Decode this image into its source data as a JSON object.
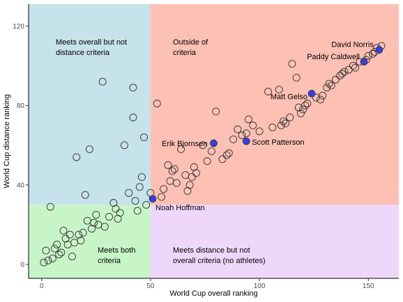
{
  "chart_data": {
    "type": "scatter",
    "xlabel": "World Cup overall ranking",
    "ylabel": "World Cup distance ranking",
    "xlim": [
      -6,
      164
    ],
    "ylim": [
      -7,
      131
    ],
    "xticks": [
      0,
      50,
      100,
      150
    ],
    "yticks": [
      0,
      40,
      80,
      120
    ],
    "grid": false,
    "colors": {
      "blue_region": "#c6e2ea",
      "red_region": "#fcc0b4",
      "green_region": "#c8f5c8",
      "purple_region": "#efd7fb",
      "highlight_point": "#3b3fd8",
      "point_stroke": "#333333"
    },
    "regions": [
      {
        "id": "overall-only",
        "x": [
          -6,
          50
        ],
        "y": [
          30,
          131
        ],
        "color": "#c6e2ea",
        "label": [
          "Meets overall but not",
          "distance criteria"
        ]
      },
      {
        "id": "outside",
        "x": [
          50,
          164
        ],
        "y": [
          30,
          131
        ],
        "color": "#fcc0b4",
        "label": [
          "Outside of",
          "criteria"
        ]
      },
      {
        "id": "both",
        "x": [
          -6,
          50
        ],
        "y": [
          -7,
          30
        ],
        "color": "#c8f5c8",
        "label": [
          "Meets both",
          "criteria"
        ]
      },
      {
        "id": "distance-only",
        "x": [
          50,
          164
        ],
        "y": [
          -7,
          30
        ],
        "color": "#efd7fb",
        "label": [
          "Meets distance but not",
          "overall criteria (no athletes)"
        ]
      }
    ],
    "highlighted": [
      {
        "name": "David Norris",
        "x": 155,
        "y": 108
      },
      {
        "name": "Paddy Caldwell",
        "x": 148,
        "y": 102
      },
      {
        "name": "Matt Gelso",
        "x": 124,
        "y": 86
      },
      {
        "name": "Erik Bjornsen",
        "x": 79,
        "y": 61
      },
      {
        "name": "Scott Patterson",
        "x": 94,
        "y": 62
      },
      {
        "name": "Noah Hoffman",
        "x": 51,
        "y": 33
      }
    ],
    "points": [
      [
        1,
        1
      ],
      [
        3,
        2
      ],
      [
        2,
        7
      ],
      [
        5,
        3
      ],
      [
        6,
        8
      ],
      [
        7,
        10
      ],
      [
        8,
        5
      ],
      [
        9,
        6
      ],
      [
        10,
        17
      ],
      [
        11,
        13
      ],
      [
        12,
        10
      ],
      [
        13,
        15
      ],
      [
        14,
        4
      ],
      [
        15,
        11
      ],
      [
        17,
        15
      ],
      [
        18,
        12
      ],
      [
        19,
        16
      ],
      [
        20,
        35
      ],
      [
        21,
        22
      ],
      [
        23,
        18
      ],
      [
        24,
        21
      ],
      [
        25,
        25
      ],
      [
        26,
        20
      ],
      [
        28,
        92
      ],
      [
        29,
        19
      ],
      [
        4,
        29
      ],
      [
        16,
        54
      ],
      [
        22,
        58
      ],
      [
        31,
        24
      ],
      [
        33,
        31
      ],
      [
        34,
        28
      ],
      [
        35,
        23
      ],
      [
        36,
        26
      ],
      [
        38,
        60
      ],
      [
        40,
        36
      ],
      [
        42,
        89
      ],
      [
        42,
        74
      ],
      [
        43,
        32
      ],
      [
        44,
        27
      ],
      [
        45,
        39
      ],
      [
        46,
        44
      ],
      [
        47,
        64
      ],
      [
        48,
        30
      ],
      [
        50,
        36
      ],
      [
        53,
        81
      ],
      [
        55,
        34
      ],
      [
        56,
        38
      ],
      [
        58,
        50
      ],
      [
        59,
        42
      ],
      [
        60,
        47
      ],
      [
        61,
        48
      ],
      [
        62,
        41
      ],
      [
        64,
        58
      ],
      [
        66,
        45
      ],
      [
        67,
        37
      ],
      [
        68,
        40
      ],
      [
        69,
        44
      ],
      [
        70,
        49
      ],
      [
        71,
        46
      ],
      [
        74,
        60
      ],
      [
        76,
        52
      ],
      [
        78,
        57
      ],
      [
        80,
        77
      ],
      [
        83,
        53
      ],
      [
        85,
        55
      ],
      [
        86,
        56
      ],
      [
        88,
        63
      ],
      [
        90,
        68
      ],
      [
        92,
        65
      ],
      [
        94,
        66
      ],
      [
        95,
        73
      ],
      [
        97,
        70
      ],
      [
        100,
        67
      ],
      [
        104,
        87
      ],
      [
        106,
        69
      ],
      [
        109,
        88
      ],
      [
        110,
        70
      ],
      [
        111,
        72
      ],
      [
        112,
        71
      ],
      [
        114,
        74
      ],
      [
        115,
        101
      ],
      [
        117,
        94
      ],
      [
        118,
        79
      ],
      [
        119,
        76
      ],
      [
        120,
        78
      ],
      [
        121,
        80
      ],
      [
        122,
        81
      ],
      [
        126,
        84
      ],
      [
        128,
        83
      ],
      [
        129,
        85
      ],
      [
        131,
        89
      ],
      [
        132,
        91
      ],
      [
        133,
        90
      ],
      [
        135,
        93
      ],
      [
        137,
        95
      ],
      [
        138,
        96
      ],
      [
        139,
        97
      ],
      [
        141,
        98
      ],
      [
        143,
        100
      ],
      [
        144,
        99
      ],
      [
        146,
        102
      ],
      [
        149,
        103
      ],
      [
        150,
        105
      ],
      [
        152,
        106
      ],
      [
        153,
        107
      ],
      [
        154,
        109
      ],
      [
        156,
        110
      ]
    ]
  }
}
